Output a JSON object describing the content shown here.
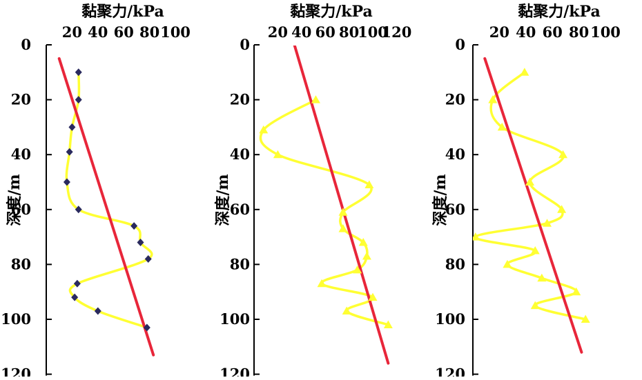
{
  "chart_data": [
    {
      "type": "line",
      "title": "",
      "xlabel": "黏聚力/kPa",
      "ylabel": "深度/m",
      "x_ticks": [
        "20",
        "40",
        "60",
        "80",
        "100"
      ],
      "y_ticks": [
        "0",
        "20",
        "40",
        "60",
        "80",
        "100",
        "120"
      ],
      "xlim": [
        0,
        100
      ],
      "ylim": [
        0,
        120
      ],
      "y_inverted": true,
      "x_axis_position": "top",
      "marker": "diamond",
      "series": [
        {
          "role": "measured",
          "color": "#ffff33",
          "marker_color": "#2a2a5e",
          "points": [
            [
              25,
              10
            ],
            [
              25,
              20
            ],
            [
              20,
              30
            ],
            [
              18,
              39
            ],
            [
              16,
              50
            ],
            [
              25,
              60
            ],
            [
              68,
              66
            ],
            [
              73,
              72
            ],
            [
              79,
              78
            ],
            [
              24,
              87
            ],
            [
              22,
              92
            ],
            [
              40,
              97
            ],
            [
              78,
              103
            ]
          ]
        },
        {
          "role": "trend",
          "color": "#e8263a",
          "points": [
            [
              10,
              5
            ],
            [
              83,
              113
            ]
          ]
        }
      ]
    },
    {
      "type": "line",
      "title": "",
      "xlabel": "黏聚力/kPa",
      "ylabel": "深度/m",
      "x_ticks": [
        "20",
        "40",
        "60",
        "80",
        "100",
        "120"
      ],
      "y_ticks": [
        "0",
        "20",
        "40",
        "60",
        "80",
        "100",
        "120"
      ],
      "xlim": [
        0,
        120
      ],
      "ylim": [
        0,
        120
      ],
      "y_inverted": true,
      "x_axis_position": "top",
      "marker": "triangle",
      "series": [
        {
          "role": "measured",
          "color": "#ffff33",
          "marker_color": "#ffff33",
          "points": [
            [
              52,
              20
            ],
            [
              8,
              31
            ],
            [
              20,
              40
            ],
            [
              97,
              51
            ],
            [
              75,
              61
            ],
            [
              75,
              67
            ],
            [
              92,
              72
            ],
            [
              95,
              77
            ],
            [
              87,
              82
            ],
            [
              57,
              87
            ],
            [
              100,
              92
            ],
            [
              78,
              97
            ],
            [
              113,
              102
            ]
          ]
        },
        {
          "role": "trend",
          "color": "#e8263a",
          "points": [
            [
              34,
              0
            ],
            [
              113,
              116
            ]
          ]
        }
      ]
    },
    {
      "type": "line",
      "title": "",
      "xlabel": "黏聚力/kPa",
      "ylabel": "深度/m",
      "x_ticks": [
        "20",
        "40",
        "60",
        "80",
        "100"
      ],
      "y_ticks": [
        "0",
        "20",
        "40",
        "60",
        "80",
        "100",
        "120"
      ],
      "xlim": [
        0,
        100
      ],
      "ylim": [
        0,
        120
      ],
      "y_inverted": true,
      "x_axis_position": "top",
      "marker": "triangle",
      "series": [
        {
          "role": "measured",
          "color": "#ffff33",
          "marker_color": "#ffff33",
          "points": [
            [
              39,
              10
            ],
            [
              15,
              20
            ],
            [
              22,
              30
            ],
            [
              68,
              40
            ],
            [
              43,
              50
            ],
            [
              67,
              60
            ],
            [
              56,
              65
            ],
            [
              2,
              70
            ],
            [
              47,
              75
            ],
            [
              26,
              80
            ],
            [
              52,
              85
            ],
            [
              78,
              90
            ],
            [
              47,
              95
            ],
            [
              85,
              100
            ]
          ]
        },
        {
          "role": "trend",
          "color": "#e8263a",
          "points": [
            [
              9,
              5
            ],
            [
              82,
              112
            ]
          ]
        }
      ]
    }
  ]
}
